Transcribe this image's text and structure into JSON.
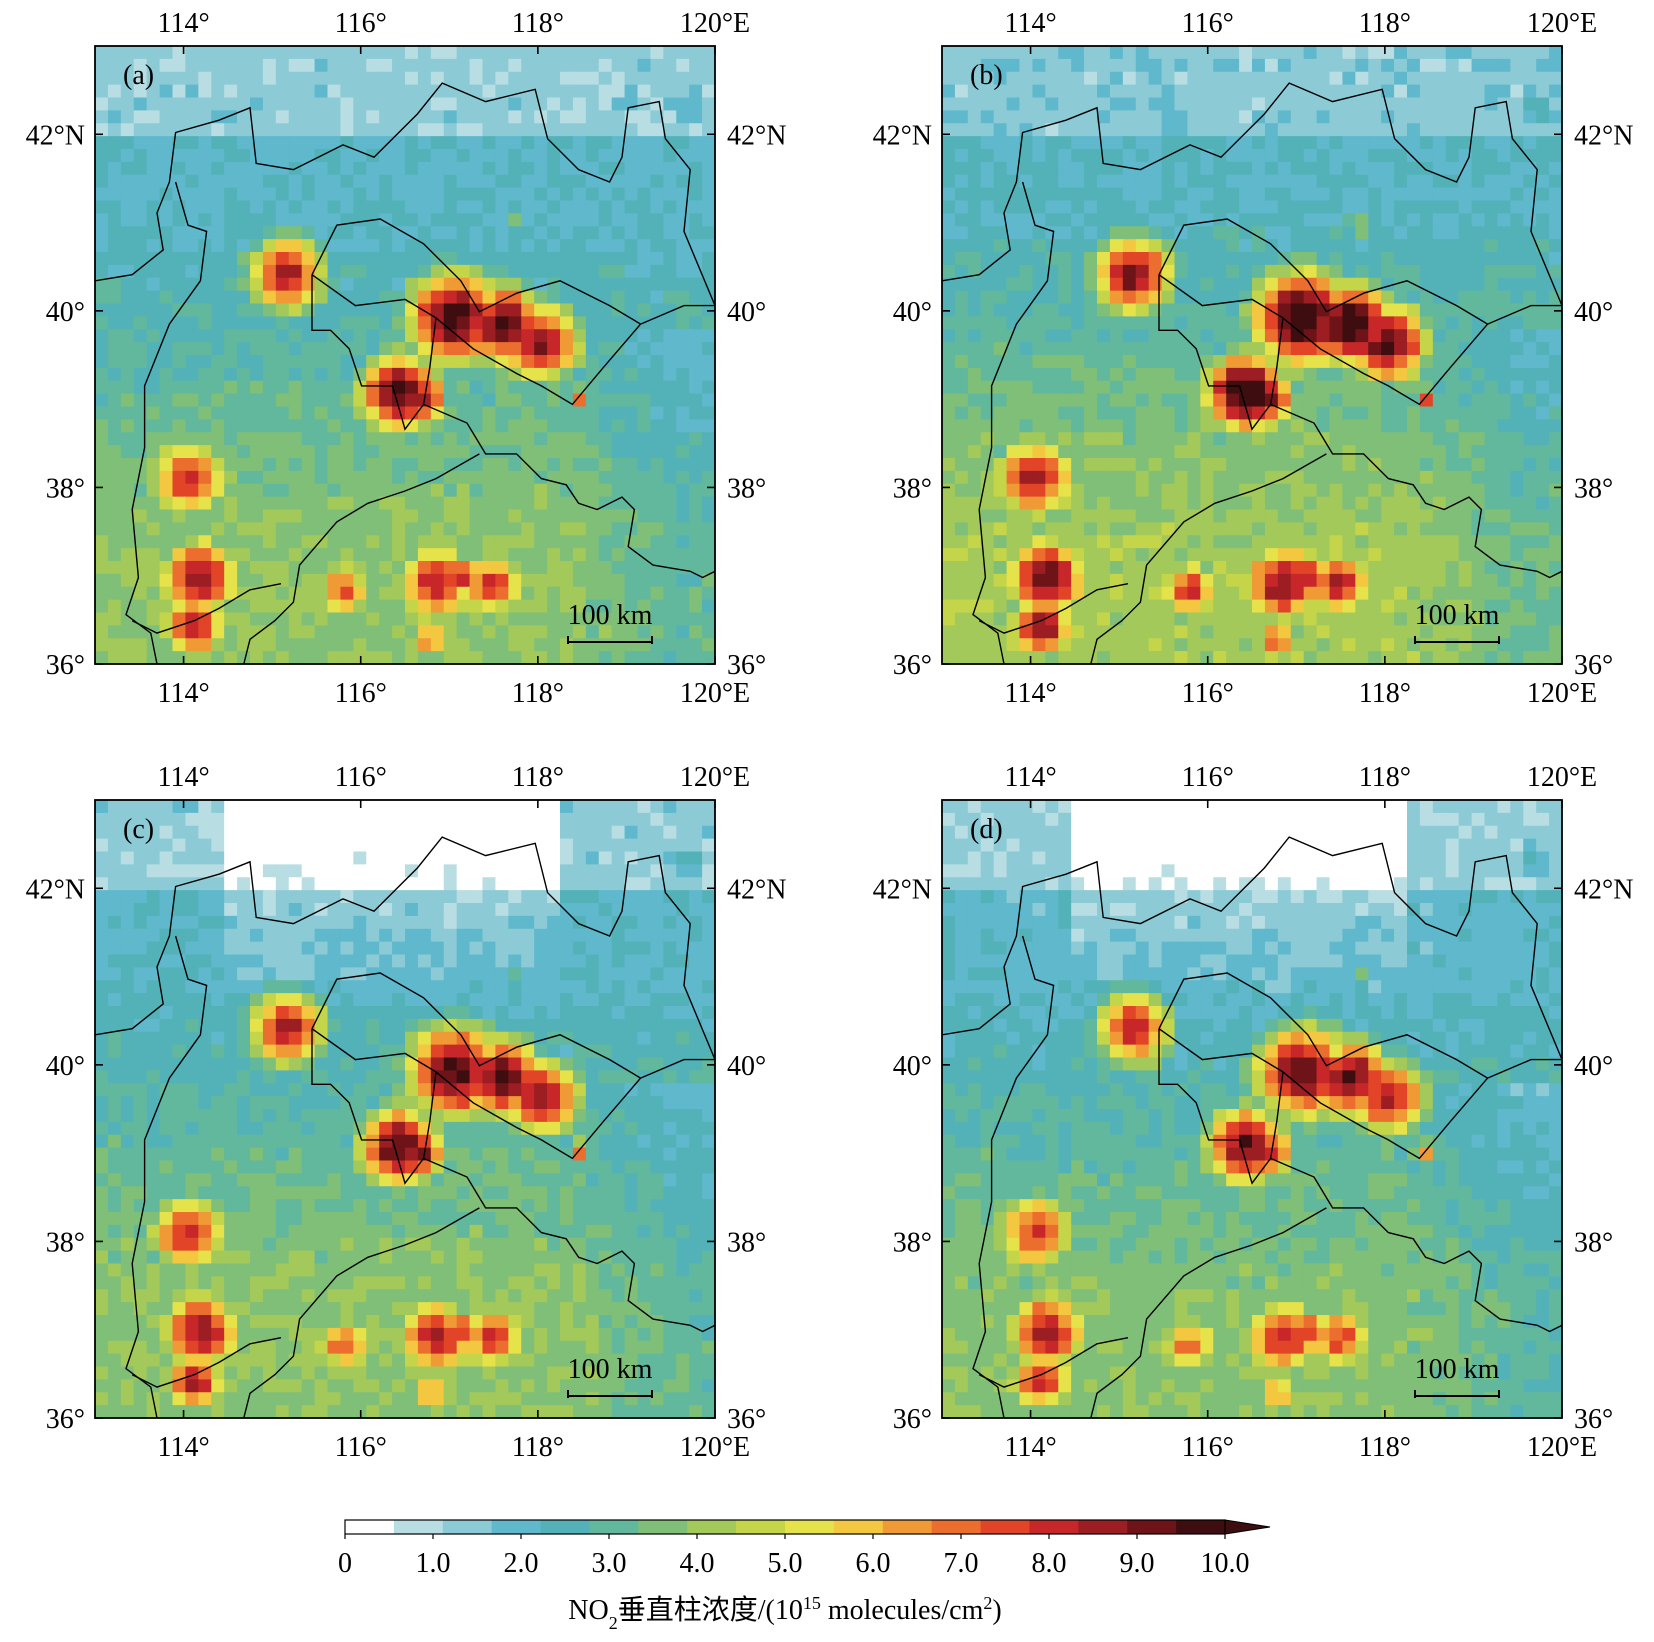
{
  "panels": [
    {
      "label": "(a)"
    },
    {
      "label": "(b)"
    },
    {
      "label": "(c)"
    },
    {
      "label": "(d)"
    }
  ],
  "axes": {
    "lon_ticks": [
      "114°",
      "116°",
      "118°",
      "120°E"
    ],
    "lat_ticks": [
      "36°",
      "38°",
      "40°",
      "42°N"
    ],
    "lon_range_deg": [
      113.0,
      120.0
    ],
    "lat_range_deg": [
      36.0,
      43.0
    ]
  },
  "scale_bar": {
    "label": "100 km"
  },
  "colorbar": {
    "ticks": [
      "0",
      "1.0",
      "2.0",
      "3.0",
      "4.0",
      "5.0",
      "6.0",
      "7.0",
      "8.0",
      "9.0",
      "10.0"
    ],
    "title_main": "NO",
    "title_sub": "2",
    "title_mid": "垂直柱浓度/(10",
    "title_sup": "15",
    "title_units": " molecules/cm",
    "title_sup2": "2",
    "title_end": ")",
    "extend": "max",
    "colors": [
      "#ffffff",
      "#b8dde2",
      "#8ccbd6",
      "#5fb8cc",
      "#53b2b8",
      "#62b89c",
      "#80bf78",
      "#a2c95a",
      "#c5d54a",
      "#e5e24a",
      "#f3c840",
      "#f09a36",
      "#ec6e2e",
      "#e24428",
      "#c8272a",
      "#9c1d22",
      "#6e1419",
      "#3e0d0f"
    ]
  }
}
